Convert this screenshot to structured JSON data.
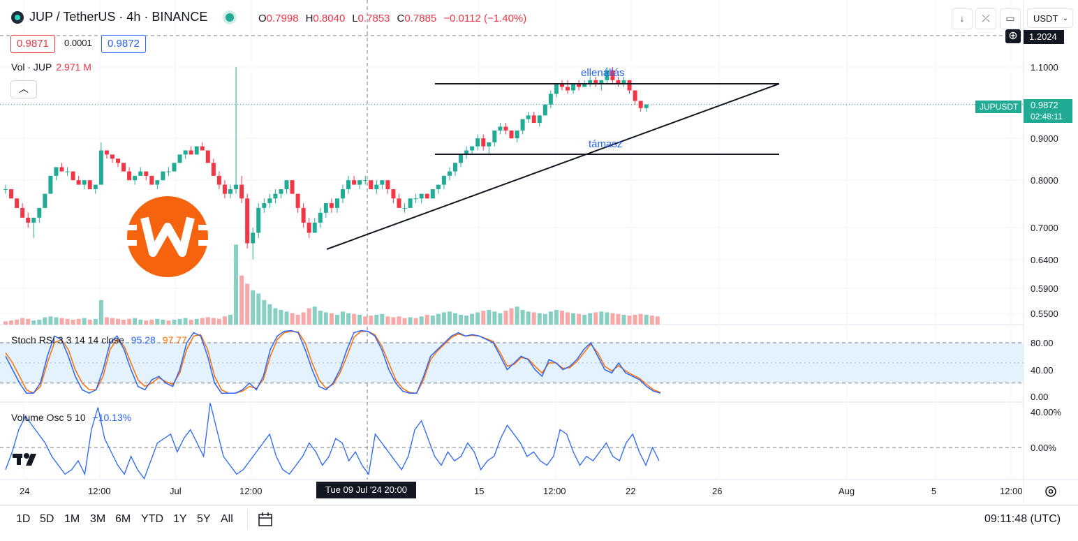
{
  "header": {
    "symbol_title": "JUP / TetherUS · 4h · BINANCE",
    "ohlc": {
      "o_label": "O",
      "o": "0.7998",
      "h_label": "H",
      "h": "0.8040",
      "l_label": "L",
      "l": "0.7853",
      "c_label": "C",
      "c": "0.7885",
      "change": "−0.0112 (−1.40%)"
    },
    "bid": "0.9871",
    "spread": "0.0001",
    "ask": "0.9872",
    "currency": "USDT",
    "currency_chevron": "chevron-down-icon"
  },
  "volume_indicator": {
    "label": "Vol · JUP",
    "value": "2.971 M"
  },
  "stoch_rsi": {
    "label": "Stoch RSI 3 3 14 14 close",
    "k": "95.28",
    "d": "97.77",
    "ticks": [
      "80.00",
      "40.00",
      "0.00"
    ]
  },
  "volume_osc": {
    "label": "Volume Osc 5 10",
    "value": "−10.13%",
    "ticks": [
      "40.00%",
      "0.00%"
    ]
  },
  "price_axis": {
    "ticks": [
      "1.1000",
      "0.9000",
      "0.8000",
      "0.7000",
      "0.6400",
      "0.5900",
      "0.5500"
    ],
    "crosshair_price": "1.2024",
    "symbol_tag": "JUPUSDT",
    "last_price": "0.9872",
    "countdown": "02:48:11"
  },
  "time_axis": {
    "ticks": [
      "24",
      "12:00",
      "Jul",
      "12:00",
      "15",
      "12:00",
      "22",
      "26",
      "Aug",
      "5",
      "12:00"
    ],
    "crosshair_time": "Tue 09 Jul '24   20:00"
  },
  "annotations": {
    "resistance": "ellenállás",
    "support": "támasz"
  },
  "ranges": [
    "1D",
    "5D",
    "1M",
    "3M",
    "6M",
    "YTD",
    "1Y",
    "5Y",
    "All"
  ],
  "clock": "09:11:48 (UTC)",
  "colors": {
    "up": "#22ab94",
    "down": "#f23645",
    "stoch_k": "#2962ff",
    "stoch_d": "#ff6d00",
    "vol_up": "#88cfc3",
    "vol_down": "#f7a9a7",
    "band": "#e3f2fd",
    "logo": "#f5630f",
    "annotation": "#2962ff"
  },
  "chart_data": {
    "type": "candlestick",
    "timeframe": "4h",
    "x_range": [
      "2024-06-23",
      "2024-08-07"
    ],
    "y_scale": "log",
    "ylim": [
      0.53,
      1.21
    ],
    "candles": [
      [
        0.78,
        0.79,
        0.77,
        0.78
      ],
      [
        0.78,
        0.78,
        0.76,
        0.76
      ],
      [
        0.76,
        0.76,
        0.74,
        0.74
      ],
      [
        0.74,
        0.75,
        0.72,
        0.72
      ],
      [
        0.72,
        0.73,
        0.7,
        0.71
      ],
      [
        0.71,
        0.72,
        0.68,
        0.72
      ],
      [
        0.72,
        0.74,
        0.71,
        0.74
      ],
      [
        0.74,
        0.77,
        0.74,
        0.77
      ],
      [
        0.77,
        0.81,
        0.77,
        0.81
      ],
      [
        0.81,
        0.83,
        0.8,
        0.83
      ],
      [
        0.83,
        0.84,
        0.82,
        0.82
      ],
      [
        0.82,
        0.83,
        0.81,
        0.82
      ],
      [
        0.82,
        0.82,
        0.8,
        0.8
      ],
      [
        0.8,
        0.81,
        0.79,
        0.79
      ],
      [
        0.79,
        0.8,
        0.78,
        0.8
      ],
      [
        0.8,
        0.8,
        0.78,
        0.78
      ],
      [
        0.78,
        0.79,
        0.77,
        0.79
      ],
      [
        0.79,
        0.89,
        0.79,
        0.87
      ],
      [
        0.87,
        0.87,
        0.85,
        0.86
      ],
      [
        0.86,
        0.86,
        0.84,
        0.85
      ],
      [
        0.85,
        0.85,
        0.83,
        0.84
      ],
      [
        0.84,
        0.84,
        0.82,
        0.82
      ],
      [
        0.82,
        0.83,
        0.8,
        0.8
      ],
      [
        0.8,
        0.81,
        0.79,
        0.81
      ],
      [
        0.81,
        0.83,
        0.81,
        0.82
      ],
      [
        0.82,
        0.82,
        0.8,
        0.81
      ],
      [
        0.81,
        0.81,
        0.79,
        0.79
      ],
      [
        0.79,
        0.8,
        0.78,
        0.8
      ],
      [
        0.8,
        0.82,
        0.8,
        0.82
      ],
      [
        0.82,
        0.83,
        0.81,
        0.82
      ],
      [
        0.82,
        0.84,
        0.82,
        0.84
      ],
      [
        0.84,
        0.86,
        0.84,
        0.86
      ],
      [
        0.86,
        0.87,
        0.85,
        0.87
      ],
      [
        0.87,
        0.88,
        0.86,
        0.86
      ],
      [
        0.86,
        0.88,
        0.86,
        0.88
      ],
      [
        0.88,
        0.89,
        0.87,
        0.87
      ],
      [
        0.87,
        0.87,
        0.84,
        0.84
      ],
      [
        0.84,
        0.85,
        0.81,
        0.81
      ],
      [
        0.81,
        0.82,
        0.78,
        0.79
      ],
      [
        0.79,
        0.8,
        0.76,
        0.77
      ],
      [
        0.77,
        0.79,
        0.76,
        0.78
      ],
      [
        0.78,
        1.1,
        0.77,
        0.79
      ],
      [
        0.79,
        0.81,
        0.75,
        0.76
      ],
      [
        0.76,
        0.77,
        0.66,
        0.67
      ],
      [
        0.67,
        0.7,
        0.64,
        0.69
      ],
      [
        0.69,
        0.75,
        0.68,
        0.74
      ],
      [
        0.74,
        0.76,
        0.73,
        0.75
      ],
      [
        0.75,
        0.77,
        0.74,
        0.76
      ],
      [
        0.76,
        0.78,
        0.75,
        0.77
      ],
      [
        0.77,
        0.78,
        0.76,
        0.78
      ],
      [
        0.78,
        0.8,
        0.77,
        0.8
      ],
      [
        0.8,
        0.8,
        0.77,
        0.77
      ],
      [
        0.77,
        0.77,
        0.73,
        0.74
      ],
      [
        0.74,
        0.75,
        0.7,
        0.71
      ],
      [
        0.71,
        0.72,
        0.68,
        0.69
      ],
      [
        0.69,
        0.72,
        0.69,
        0.71
      ],
      [
        0.71,
        0.74,
        0.7,
        0.73
      ],
      [
        0.73,
        0.75,
        0.72,
        0.75
      ],
      [
        0.75,
        0.76,
        0.73,
        0.74
      ],
      [
        0.74,
        0.76,
        0.73,
        0.76
      ],
      [
        0.76,
        0.79,
        0.75,
        0.78
      ],
      [
        0.78,
        0.81,
        0.77,
        0.8
      ],
      [
        0.8,
        0.81,
        0.79,
        0.79
      ],
      [
        0.79,
        0.8,
        0.78,
        0.8
      ],
      [
        0.8,
        0.81,
        0.79,
        0.8
      ],
      [
        0.8,
        0.8,
        0.78,
        0.78
      ],
      [
        0.78,
        0.8,
        0.77,
        0.79
      ],
      [
        0.79,
        0.8,
        0.78,
        0.8
      ],
      [
        0.8,
        0.8,
        0.77,
        0.78
      ],
      [
        0.78,
        0.78,
        0.75,
        0.76
      ],
      [
        0.76,
        0.77,
        0.74,
        0.74
      ],
      [
        0.74,
        0.75,
        0.73,
        0.74
      ],
      [
        0.74,
        0.76,
        0.74,
        0.76
      ],
      [
        0.76,
        0.77,
        0.75,
        0.76
      ],
      [
        0.76,
        0.77,
        0.75,
        0.77
      ],
      [
        0.77,
        0.77,
        0.76,
        0.76
      ],
      [
        0.76,
        0.78,
        0.76,
        0.78
      ],
      [
        0.78,
        0.79,
        0.77,
        0.79
      ],
      [
        0.79,
        0.81,
        0.78,
        0.81
      ],
      [
        0.81,
        0.83,
        0.8,
        0.82
      ],
      [
        0.82,
        0.84,
        0.81,
        0.84
      ],
      [
        0.84,
        0.86,
        0.83,
        0.86
      ],
      [
        0.86,
        0.88,
        0.85,
        0.87
      ],
      [
        0.87,
        0.88,
        0.86,
        0.88
      ],
      [
        0.88,
        0.91,
        0.87,
        0.9
      ],
      [
        0.9,
        0.91,
        0.87,
        0.88
      ],
      [
        0.88,
        0.89,
        0.86,
        0.89
      ],
      [
        0.89,
        0.92,
        0.88,
        0.92
      ],
      [
        0.92,
        0.94,
        0.91,
        0.93
      ],
      [
        0.93,
        0.94,
        0.91,
        0.92
      ],
      [
        0.92,
        0.92,
        0.9,
        0.9
      ],
      [
        0.9,
        0.92,
        0.89,
        0.92
      ],
      [
        0.92,
        0.95,
        0.91,
        0.95
      ],
      [
        0.95,
        0.97,
        0.94,
        0.96
      ],
      [
        0.96,
        0.97,
        0.94,
        0.94
      ],
      [
        0.94,
        0.96,
        0.93,
        0.96
      ],
      [
        0.96,
        0.99,
        0.96,
        0.99
      ],
      [
        0.99,
        1.03,
        0.98,
        1.02
      ],
      [
        1.02,
        1.05,
        1.01,
        1.05
      ],
      [
        1.05,
        1.06,
        1.03,
        1.04
      ],
      [
        1.04,
        1.06,
        1.02,
        1.03
      ],
      [
        1.03,
        1.05,
        1.02,
        1.05
      ],
      [
        1.05,
        1.06,
        1.03,
        1.04
      ],
      [
        1.04,
        1.06,
        1.04,
        1.05
      ],
      [
        1.05,
        1.07,
        1.04,
        1.06
      ],
      [
        1.06,
        1.07,
        1.04,
        1.05
      ],
      [
        1.05,
        1.06,
        1.03,
        1.06
      ],
      [
        1.06,
        1.1,
        1.05,
        1.09
      ],
      [
        1.09,
        1.1,
        1.05,
        1.06
      ],
      [
        1.06,
        1.07,
        1.04,
        1.05
      ],
      [
        1.05,
        1.07,
        1.04,
        1.06
      ],
      [
        1.06,
        1.06,
        1.02,
        1.03
      ],
      [
        1.03,
        1.03,
        0.99,
        1.0
      ],
      [
        1.0,
        1.0,
        0.97,
        0.98
      ],
      [
        0.98,
        0.99,
        0.97,
        0.99
      ]
    ],
    "volume": [
      4,
      5,
      6,
      8,
      7,
      5,
      6,
      9,
      10,
      9,
      8,
      7,
      6,
      7,
      8,
      6,
      7,
      30,
      9,
      8,
      7,
      6,
      7,
      8,
      6,
      5,
      6,
      7,
      6,
      5,
      6,
      7,
      8,
      6,
      7,
      8,
      9,
      8,
      7,
      10,
      12,
      98,
      60,
      50,
      42,
      38,
      30,
      25,
      20,
      18,
      16,
      14,
      12,
      15,
      20,
      22,
      17,
      15,
      14,
      12,
      16,
      14,
      13,
      12,
      10,
      11,
      12,
      13,
      10,
      9,
      10,
      8,
      9,
      8,
      10,
      12,
      11,
      13,
      15,
      16,
      14,
      12,
      11,
      13,
      15,
      17,
      18,
      16,
      14,
      17,
      20,
      22,
      18,
      16,
      15,
      14,
      13,
      16,
      18,
      17,
      15,
      14,
      13,
      12,
      14,
      15,
      16,
      15,
      14,
      13,
      12,
      11,
      12,
      13,
      12,
      11,
      10
    ],
    "volume_up": [
      false,
      false,
      false,
      false,
      false,
      true,
      true,
      true,
      true,
      true,
      false,
      false,
      false,
      false,
      true,
      false,
      true,
      true,
      false,
      false,
      false,
      false,
      false,
      true,
      true,
      false,
      false,
      true,
      true,
      false,
      true,
      true,
      true,
      false,
      true,
      false,
      false,
      false,
      false,
      false,
      true,
      true,
      false,
      false,
      true,
      true,
      true,
      true,
      true,
      true,
      true,
      false,
      false,
      false,
      false,
      true,
      true,
      true,
      false,
      true,
      true,
      true,
      false,
      true,
      false,
      false,
      true,
      true,
      false,
      false,
      false,
      false,
      true,
      false,
      true,
      false,
      true,
      true,
      true,
      true,
      true,
      true,
      true,
      true,
      true,
      false,
      true,
      true,
      true,
      false,
      false,
      true,
      true,
      true,
      false,
      true,
      true,
      true,
      true,
      false,
      false,
      true,
      false,
      true,
      true,
      false,
      true,
      true,
      false,
      false,
      true,
      false,
      false,
      false,
      true
    ],
    "stoch_k": [
      60,
      40,
      20,
      5,
      5,
      20,
      60,
      90,
      85,
      60,
      30,
      10,
      5,
      10,
      40,
      80,
      90,
      70,
      40,
      15,
      10,
      25,
      30,
      20,
      15,
      40,
      80,
      95,
      90,
      60,
      20,
      5,
      5,
      5,
      10,
      20,
      10,
      30,
      70,
      90,
      97,
      98,
      95,
      70,
      40,
      15,
      10,
      20,
      40,
      70,
      95,
      98,
      97,
      90,
      70,
      40,
      20,
      8,
      5,
      5,
      30,
      60,
      70,
      80,
      90,
      95,
      90,
      92,
      90,
      85,
      80,
      60,
      40,
      50,
      60,
      55,
      40,
      30,
      55,
      50,
      40,
      45,
      55,
      70,
      80,
      60,
      40,
      35,
      50,
      35,
      30,
      25,
      15,
      8,
      5
    ],
    "stoch_d": [
      65,
      50,
      30,
      10,
      5,
      15,
      50,
      80,
      85,
      70,
      40,
      20,
      10,
      10,
      30,
      70,
      85,
      75,
      50,
      25,
      15,
      20,
      28,
      22,
      18,
      35,
      70,
      90,
      92,
      70,
      30,
      10,
      5,
      5,
      8,
      15,
      12,
      25,
      60,
      85,
      95,
      97,
      96,
      80,
      50,
      25,
      12,
      18,
      35,
      60,
      88,
      97,
      97,
      92,
      75,
      50,
      25,
      12,
      6,
      5,
      25,
      55,
      68,
      78,
      88,
      93,
      90,
      91,
      90,
      86,
      82,
      65,
      45,
      48,
      58,
      56,
      45,
      35,
      50,
      50,
      42,
      43,
      52,
      65,
      78,
      65,
      45,
      38,
      46,
      38,
      32,
      27,
      18,
      10,
      6
    ],
    "volume_osc": [
      -25,
      -5,
      20,
      35,
      25,
      15,
      5,
      -10,
      -20,
      -30,
      -25,
      -15,
      -30,
      20,
      45,
      10,
      -5,
      -20,
      -30,
      -10,
      -25,
      -35,
      -15,
      5,
      10,
      15,
      -5,
      10,
      20,
      5,
      -10,
      50,
      20,
      -10,
      -20,
      -30,
      -25,
      -15,
      -5,
      5,
      15,
      -10,
      -25,
      -30,
      -20,
      -10,
      5,
      -5,
      -20,
      -10,
      10,
      5,
      -15,
      -5,
      -20,
      -30,
      15,
      5,
      -5,
      -15,
      -25,
      -10,
      20,
      30,
      10,
      -10,
      -20,
      -5,
      -15,
      -10,
      5,
      -5,
      -25,
      -15,
      -10,
      10,
      25,
      15,
      5,
      -10,
      -5,
      -15,
      -20,
      -10,
      20,
      15,
      -5,
      -20,
      -10,
      -15,
      -5,
      5,
      -10,
      -15,
      5,
      15,
      -5,
      -20,
      0,
      -15
    ]
  }
}
